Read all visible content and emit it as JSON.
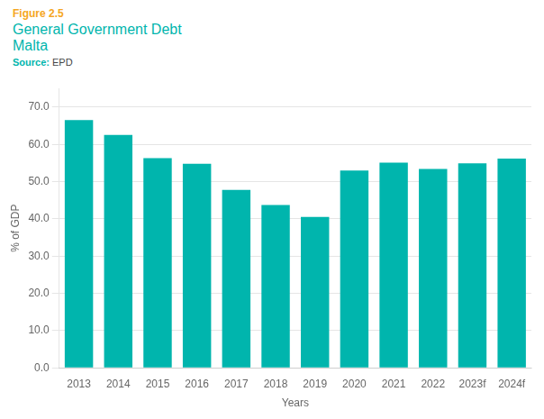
{
  "chart_data": {
    "type": "bar",
    "title": "General Government Debt",
    "subtitle": "Malta",
    "annotations": [
      "Figure 2.5",
      "Source:",
      "EPD"
    ],
    "xlabel": "Years",
    "ylabel": "% of GDP",
    "categories": [
      "2013",
      "2014",
      "2015",
      "2016",
      "2017",
      "2018",
      "2019",
      "2020",
      "2021",
      "2022",
      "2023f",
      "2024f"
    ],
    "values": [
      66.5,
      62.5,
      56.3,
      54.8,
      47.8,
      43.7,
      40.5,
      53.0,
      55.1,
      53.4,
      54.9,
      56.2
    ],
    "color": "#00B5AD",
    "ylim": [
      0,
      75
    ],
    "yticks": [
      {
        "value": 0,
        "label": "0.0"
      },
      {
        "value": 10,
        "label": "10.0"
      },
      {
        "value": 20,
        "label": "20.0"
      },
      {
        "value": 30,
        "label": "30.0"
      },
      {
        "value": 40,
        "label": "40.0"
      },
      {
        "value": 50,
        "label": "50.0"
      },
      {
        "value": 60,
        "label": "60.0"
      },
      {
        "value": 70,
        "label": "70.0"
      }
    ],
    "grid": true
  }
}
